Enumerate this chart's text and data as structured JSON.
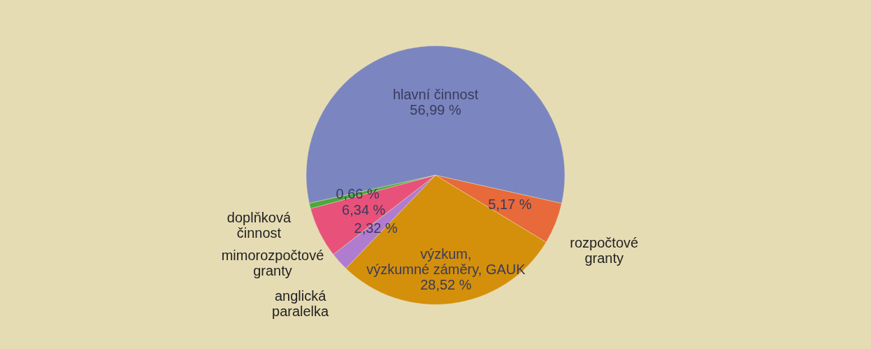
{
  "chart_data": {
    "type": "pie",
    "categories": [
      "hlavní činnost",
      "rozpočtové\ngranty",
      "výzkum,\nvýzkumné záměry, GAUK",
      "anglická\nparalelka",
      "mimorozpočtové\ngranty",
      "doplňková\nčinnost"
    ],
    "values": [
      56.99,
      5.17,
      28.52,
      2.32,
      6.34,
      0.66
    ],
    "value_labels": [
      "56,99 %",
      "5,17 %",
      "28,52 %",
      "2,32 %",
      "6,34 %",
      "0,66 %"
    ],
    "colors": [
      "#7b86c0",
      "#e8693a",
      "#d4900a",
      "#b07ccf",
      "#e8517a",
      "#4aa83c"
    ],
    "legend": false
  }
}
